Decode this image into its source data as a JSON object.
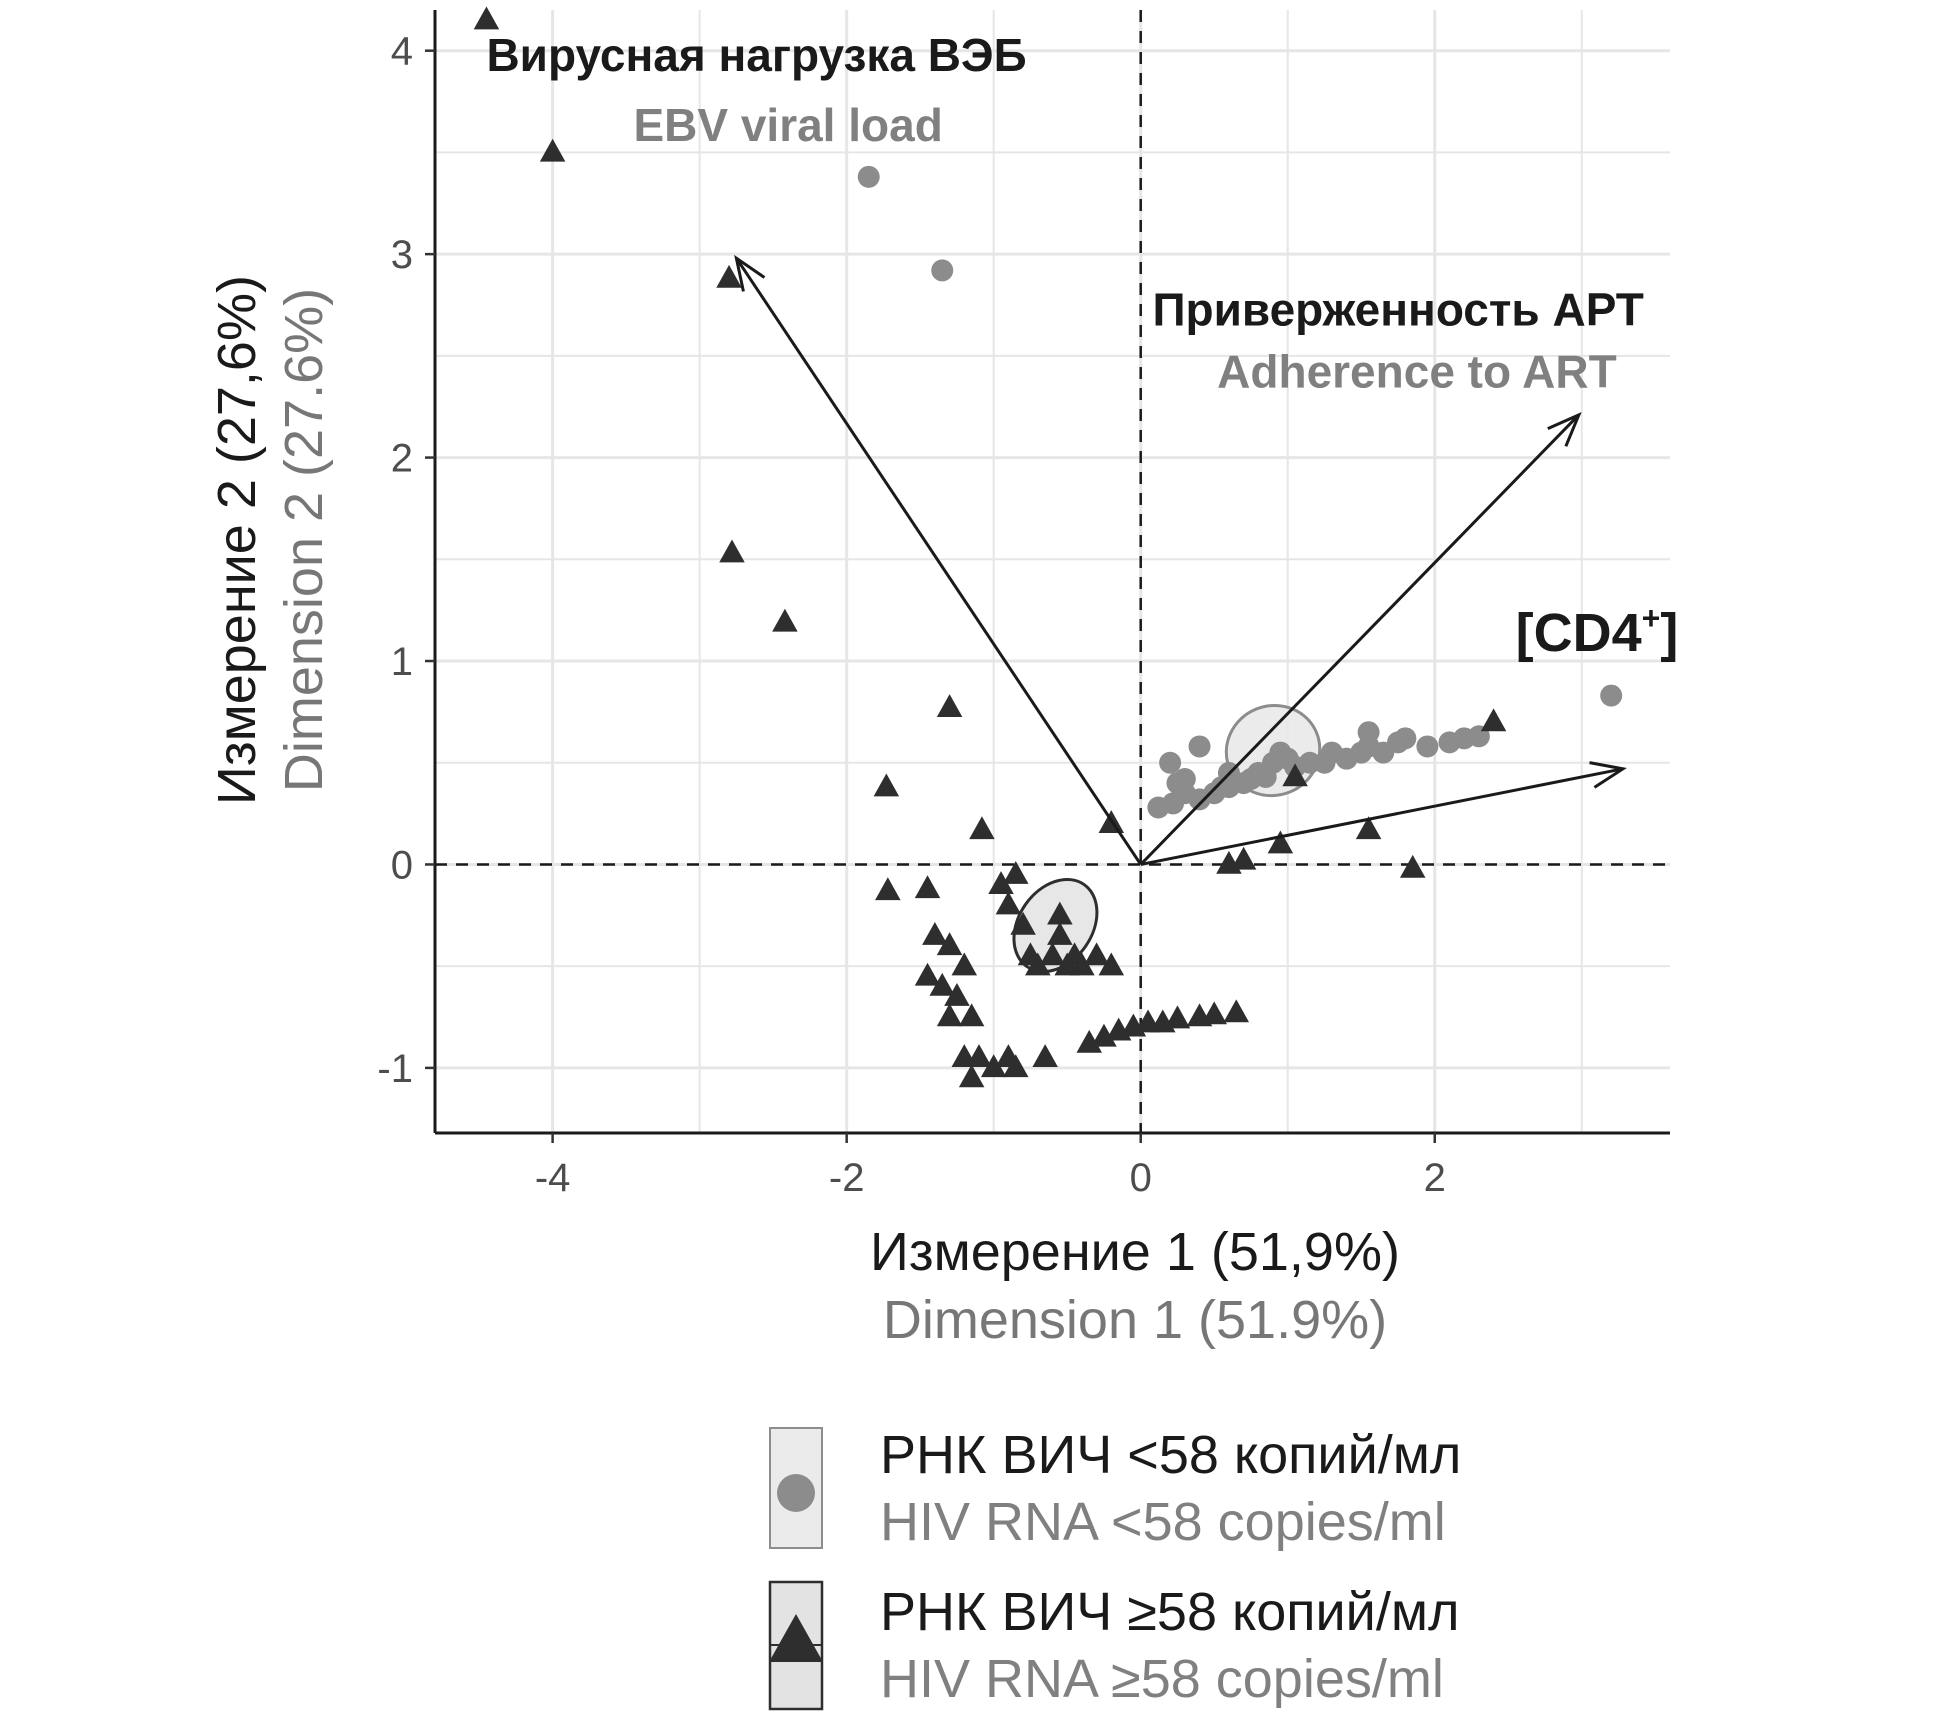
{
  "chart_data": {
    "type": "scatter",
    "subtype": "pca-biplot",
    "xlabel_ru": "Измерение 1 (51,9%)",
    "xlabel_en": "Dimension 1 (51.9%)",
    "ylabel_ru": "Измерение 2 (27,6%)",
    "ylabel_en": "Dimension 2 (27.6%)",
    "xlim": [
      -4.8,
      3.6
    ],
    "ylim": [
      -1.32,
      4.2
    ],
    "x_ticks": [
      -4,
      -2,
      0,
      2
    ],
    "x_tick_labels": [
      "-4",
      "-2",
      "0",
      "2"
    ],
    "y_ticks": [
      -1,
      0,
      1,
      2,
      3,
      4
    ],
    "y_tick_labels": [
      "-1",
      "0",
      "1",
      "2",
      "3",
      "4"
    ],
    "grid": true,
    "reference_lines": {
      "x": 0,
      "y": 0,
      "style": "dashed"
    },
    "vectors": [
      {
        "name": "ebv",
        "x": -2.75,
        "y": 2.98,
        "label_ru": "Вирусная нагрузка ВЭБ",
        "label_en": "EBV viral load",
        "label_pos": [
          -4.45,
          3.9
        ]
      },
      {
        "name": "adherence",
        "x": 2.98,
        "y": 2.21,
        "label_ru": "Приверженность АРТ",
        "label_en": "Adherence to ART",
        "label_pos": [
          0.08,
          2.65
        ]
      },
      {
        "name": "cd4",
        "x": 3.28,
        "y": 0.47,
        "label_ru": "[CD4",
        "label_sup": "+",
        "label_close": "]",
        "label_pos": [
          2.55,
          1.05
        ]
      }
    ],
    "series": [
      {
        "name": "РНК ВИЧ <58 копий/мл",
        "name_en": "HIV RNA <58 copies/ml",
        "marker": "circle",
        "color": "#8c8c8c",
        "ellipse": {
          "cx": 0.9,
          "cy": 0.56,
          "rx": 0.32,
          "ry": 0.22,
          "angle_deg": -22,
          "fill": "#e8e8e8",
          "stroke": "#8c8c8c"
        },
        "points": [
          [
            -1.85,
            3.38
          ],
          [
            -1.35,
            2.92
          ],
          [
            3.2,
            0.83
          ],
          [
            0.2,
            0.5
          ],
          [
            0.4,
            0.58
          ],
          [
            0.25,
            0.4
          ],
          [
            0.22,
            0.3
          ],
          [
            0.3,
            0.35
          ],
          [
            0.4,
            0.32
          ],
          [
            0.5,
            0.35
          ],
          [
            0.55,
            0.38
          ],
          [
            0.6,
            0.38
          ],
          [
            0.7,
            0.4
          ],
          [
            0.75,
            0.42
          ],
          [
            0.8,
            0.45
          ],
          [
            0.85,
            0.43
          ],
          [
            0.9,
            0.5
          ],
          [
            0.95,
            0.55
          ],
          [
            1.0,
            0.52
          ],
          [
            1.05,
            0.48
          ],
          [
            1.15,
            0.5
          ],
          [
            1.25,
            0.5
          ],
          [
            1.3,
            0.55
          ],
          [
            1.4,
            0.52
          ],
          [
            1.5,
            0.55
          ],
          [
            1.55,
            0.58
          ],
          [
            1.55,
            0.65
          ],
          [
            1.65,
            0.55
          ],
          [
            1.75,
            0.6
          ],
          [
            1.8,
            0.62
          ],
          [
            1.95,
            0.58
          ],
          [
            2.1,
            0.6
          ],
          [
            2.2,
            0.62
          ],
          [
            2.3,
            0.63
          ],
          [
            0.3,
            0.42
          ],
          [
            0.6,
            0.45
          ],
          [
            0.12,
            0.28
          ]
        ]
      },
      {
        "name": "РНК ВИЧ ≥58 копий/мл",
        "name_en": "HIV RNA ≥58 copies/ml",
        "marker": "triangle",
        "color": "#2e2e2e",
        "ellipse": {
          "cx": -0.58,
          "cy": -0.3,
          "rx": 0.34,
          "ry": 0.18,
          "angle_deg": -55,
          "fill": "#e3e3e3",
          "stroke": "#2e2e2e"
        },
        "points": [
          [
            -4.45,
            4.15
          ],
          [
            -4.0,
            3.5
          ],
          [
            -2.8,
            2.88
          ],
          [
            -2.78,
            1.53
          ],
          [
            -2.42,
            1.19
          ],
          [
            -1.3,
            0.77
          ],
          [
            -1.73,
            0.38
          ],
          [
            -1.08,
            0.17
          ],
          [
            -0.2,
            0.2
          ],
          [
            -1.72,
            -0.13
          ],
          [
            -1.45,
            -0.12
          ],
          [
            -0.95,
            -0.1
          ],
          [
            -0.85,
            -0.05
          ],
          [
            -0.9,
            -0.2
          ],
          [
            -1.4,
            -0.35
          ],
          [
            -1.3,
            -0.4
          ],
          [
            -1.2,
            -0.5
          ],
          [
            -1.35,
            -0.6
          ],
          [
            -1.25,
            -0.65
          ],
          [
            -1.45,
            -0.55
          ],
          [
            -1.3,
            -0.75
          ],
          [
            -1.15,
            -0.75
          ],
          [
            -1.2,
            -0.95
          ],
          [
            -1.1,
            -0.95
          ],
          [
            -1.15,
            -1.05
          ],
          [
            -1.0,
            -1.0
          ],
          [
            -0.9,
            -0.95
          ],
          [
            -0.85,
            -1.0
          ],
          [
            -0.65,
            -0.95
          ],
          [
            -0.75,
            -0.45
          ],
          [
            -0.7,
            -0.5
          ],
          [
            -0.6,
            -0.45
          ],
          [
            -0.55,
            -0.35
          ],
          [
            -0.5,
            -0.5
          ],
          [
            -0.45,
            -0.45
          ],
          [
            -0.4,
            -0.5
          ],
          [
            -0.3,
            -0.45
          ],
          [
            -0.2,
            -0.5
          ],
          [
            -0.55,
            -0.25
          ],
          [
            -0.35,
            -0.88
          ],
          [
            -0.25,
            -0.85
          ],
          [
            -0.15,
            -0.82
          ],
          [
            -0.05,
            -0.8
          ],
          [
            0.05,
            -0.78
          ],
          [
            0.15,
            -0.78
          ],
          [
            0.25,
            -0.76
          ],
          [
            0.4,
            -0.75
          ],
          [
            0.5,
            -0.74
          ],
          [
            0.65,
            -0.73
          ],
          [
            0.6,
            0.0
          ],
          [
            0.7,
            0.02
          ],
          [
            0.95,
            0.1
          ],
          [
            1.55,
            0.17
          ],
          [
            1.85,
            -0.02
          ],
          [
            1.05,
            0.43
          ],
          [
            2.4,
            0.7
          ],
          [
            -0.8,
            -0.3
          ]
        ]
      }
    ],
    "legend": [
      {
        "label_ru": "РНК ВИЧ <58 копий/мл",
        "label_en": "HIV RNA <58 copies/ml",
        "marker": "circle"
      },
      {
        "label_ru": "РНК ВИЧ ≥58 копий/мл",
        "label_en": "HIV RNA ≥58 copies/ml",
        "marker": "triangle"
      }
    ]
  }
}
